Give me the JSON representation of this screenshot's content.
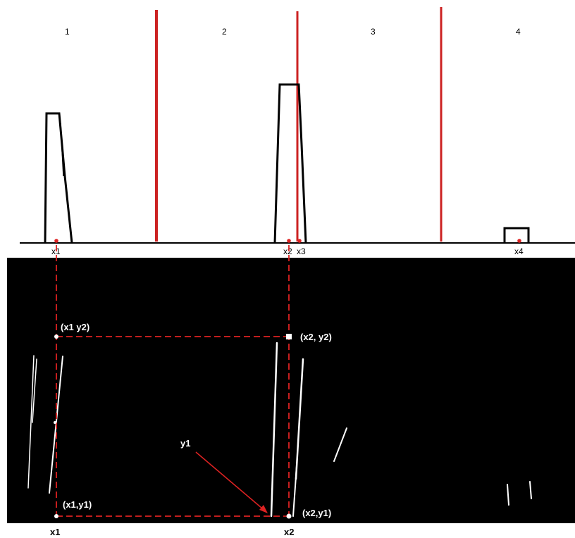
{
  "regions": [
    "1",
    "2",
    "3",
    "4"
  ],
  "x_markers": [
    "x1",
    "x2",
    "x3",
    "x4"
  ],
  "coordinates": {
    "top_left": "(x1 y2)",
    "top_right": "(x2, y2)",
    "bottom_left": "(x1,y1)",
    "bottom_right": "(x2,y1)"
  },
  "pointer_label": "y1",
  "bottom_labels": [
    "x1",
    "x2"
  ],
  "colors": {
    "divider": "#cc2222",
    "profile": "#000000",
    "panel": "#000000",
    "guide": "#dd2222",
    "line": "#ffffff"
  }
}
